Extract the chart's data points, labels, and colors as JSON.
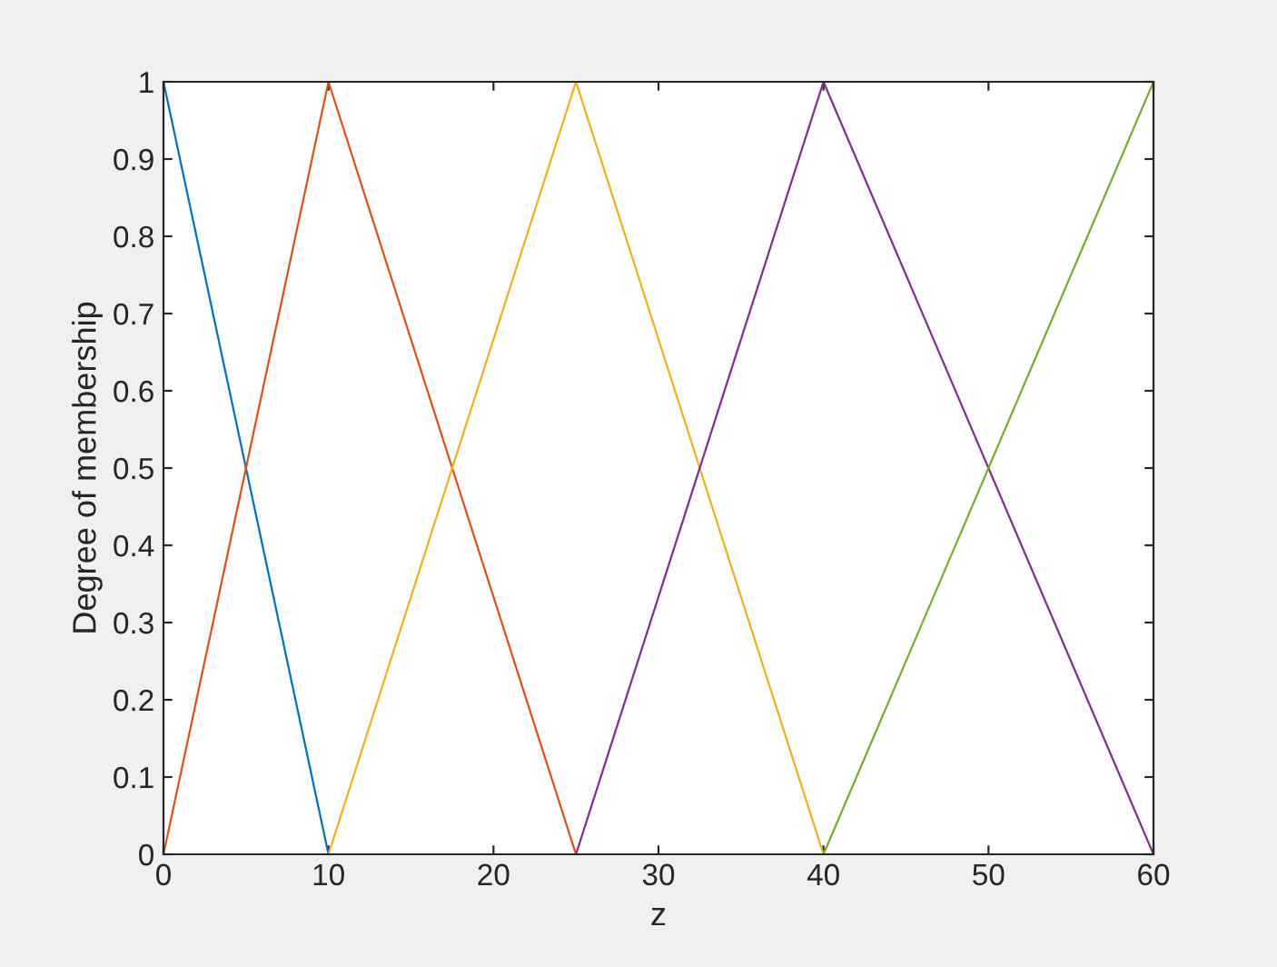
{
  "chart_data": {
    "type": "line",
    "xlabel": "z",
    "ylabel": "Degree of membership",
    "series": [
      {
        "color": "#0072bd",
        "x": [
          0,
          10
        ],
        "values": [
          1,
          0
        ]
      },
      {
        "color": "#d95319",
        "x": [
          0,
          10,
          25
        ],
        "values": [
          0,
          1,
          0
        ]
      },
      {
        "color": "#edb120",
        "x": [
          10,
          25,
          40
        ],
        "values": [
          0,
          1,
          0
        ]
      },
      {
        "color": "#7e2f8e",
        "x": [
          25,
          40,
          60
        ],
        "values": [
          0,
          1,
          0
        ]
      },
      {
        "color": "#77ac30",
        "x": [
          40,
          60
        ],
        "values": [
          0,
          1
        ]
      }
    ],
    "xlim": [
      0,
      60
    ],
    "xticks": [
      0,
      10,
      20,
      30,
      40,
      50,
      60
    ],
    "ylim": [
      0,
      1
    ],
    "yticks": [
      0,
      0.1,
      0.2,
      0.3,
      0.4,
      0.5,
      0.6,
      0.7,
      0.8,
      0.9,
      1
    ],
    "grid": false,
    "legend": false,
    "marker": "none",
    "line_style": "solid"
  }
}
